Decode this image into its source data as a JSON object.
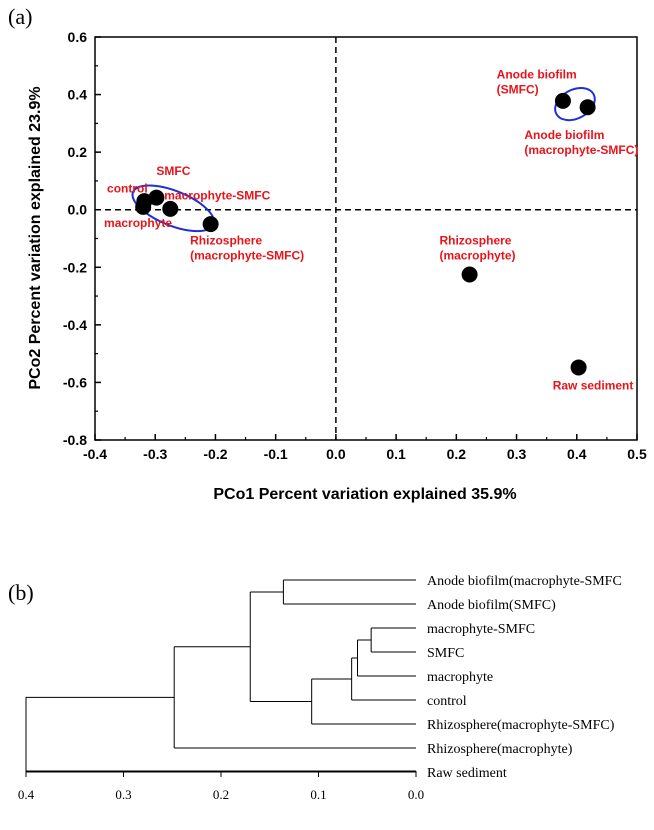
{
  "chart_data": [
    {
      "type": "scatter",
      "panel_label": "(a)",
      "xlabel": "PCo1 Percent variation explained 35.9%",
      "ylabel": "PCo2 Percent variation explained 23.9%",
      "xlim": [
        -0.4,
        0.5
      ],
      "ylim": [
        -0.8,
        0.6
      ],
      "x_ticks": [
        -0.4,
        -0.3,
        -0.2,
        -0.1,
        0.0,
        0.1,
        0.2,
        0.3,
        0.4,
        0.5
      ],
      "y_ticks": [
        -0.8,
        -0.6,
        -0.4,
        -0.2,
        0.0,
        0.2,
        0.4,
        0.6
      ],
      "x_tick_labels": [
        "-0.4",
        "-0.3",
        "-0.2",
        "-0.1",
        "0.0",
        "0.1",
        "0.2",
        "0.3",
        "0.4",
        "0.5"
      ],
      "y_tick_labels": [
        "-0.8",
        "-0.6",
        "-0.4",
        "-0.2",
        "0.0",
        "0.2",
        "0.4",
        "0.6"
      ],
      "grid": false,
      "reference_lines": {
        "x": 0,
        "y": 0,
        "style": "dashed"
      },
      "marker_color": "#000000",
      "label_color": "#e8141a",
      "ellipse_color": "#1e2fd6",
      "points": [
        {
          "x": -0.32,
          "y": 0.01,
          "label": ""
        },
        {
          "x": -0.318,
          "y": 0.03,
          "label": ""
        },
        {
          "x": -0.298,
          "y": 0.042,
          "label": ""
        },
        {
          "x": -0.275,
          "y": 0.003,
          "label": ""
        },
        {
          "x": -0.208,
          "y": -0.05,
          "label": ""
        },
        {
          "x": 0.222,
          "y": -0.225,
          "label": ""
        },
        {
          "x": 0.377,
          "y": 0.378,
          "label": ""
        },
        {
          "x": 0.418,
          "y": 0.356,
          "label": ""
        },
        {
          "x": 0.403,
          "y": -0.548,
          "label": ""
        }
      ],
      "annotations": [
        {
          "lines": [
            "SMFC"
          ],
          "x": -0.298,
          "y": 0.12,
          "anchor": "start"
        },
        {
          "lines": [
            "control"
          ],
          "x": -0.38,
          "y": 0.06,
          "anchor": "start"
        },
        {
          "lines": [
            "macrophyte-SMFC"
          ],
          "x": -0.285,
          "y": 0.035,
          "anchor": "start"
        },
        {
          "lines": [
            "macrophyte"
          ],
          "x": -0.385,
          "y": -0.06,
          "anchor": "start"
        },
        {
          "lines": [
            "Rhizosphere",
            "(macrophyte-SMFC)"
          ],
          "x": -0.242,
          "y": -0.12,
          "anchor": "start"
        },
        {
          "lines": [
            "Rhizosphere",
            "(macrophyte)"
          ],
          "x": 0.172,
          "y": -0.12,
          "anchor": "start"
        },
        {
          "lines": [
            "Raw sediment"
          ],
          "x": 0.36,
          "y": -0.625,
          "anchor": "start"
        },
        {
          "lines": [
            "Anode biofilm",
            "(SMFC)"
          ],
          "x": 0.267,
          "y": 0.455,
          "anchor": "start"
        },
        {
          "lines": [
            "Anode biofilm",
            "(macrophyte-SMFC)"
          ],
          "x": 0.313,
          "y": 0.245,
          "anchor": "start"
        }
      ],
      "ellipses": [
        {
          "cx": -0.27,
          "cy": 0.005,
          "rx": 0.072,
          "ry": 0.06,
          "angle_deg": 22
        },
        {
          "cx": 0.397,
          "cy": 0.367,
          "rx": 0.035,
          "ry": 0.05,
          "angle_deg": -28
        }
      ]
    },
    {
      "type": "dendrogram",
      "panel_label": "(b)",
      "orientation": "leaves-right",
      "xlim": [
        0.4,
        0.0
      ],
      "x_ticks": [
        0.4,
        0.3,
        0.2,
        0.1,
        0.0
      ],
      "x_tick_labels": [
        "0.4",
        "0.3",
        "0.2",
        "0.1",
        "0.0"
      ],
      "leaves": [
        "Anode biofilm(macrophyte-SMFC",
        "Anode biofilm(SMFC)",
        "macrophyte-SMFC",
        "SMFC",
        "macrophyte",
        "control",
        "Rhizosphere(macrophyte-SMFC)",
        "Rhizosphere(macrophyte)",
        "Raw sediment"
      ],
      "merges": [
        {
          "a": "L2",
          "b": "L3",
          "height": 0.046
        },
        {
          "a": "M0",
          "b": "L4",
          "height": 0.06
        },
        {
          "a": "M1",
          "b": "L5",
          "height": 0.066
        },
        {
          "a": "M2",
          "b": "L6",
          "height": 0.107
        },
        {
          "a": "L0",
          "b": "L1",
          "height": 0.136
        },
        {
          "a": "M4",
          "b": "M3",
          "height": 0.17
        },
        {
          "a": "M5",
          "b": "L7",
          "height": 0.248
        },
        {
          "a": "M6",
          "b": "L8",
          "height": 0.4
        }
      ]
    }
  ]
}
